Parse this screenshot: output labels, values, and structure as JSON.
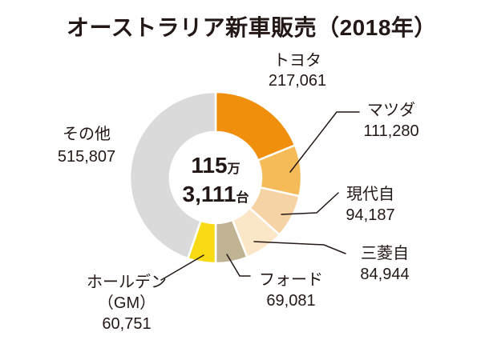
{
  "page": {
    "background_color": "#ffffff",
    "text_color": "#231815"
  },
  "chart_data": {
    "type": "pie",
    "donut": true,
    "title": "オーストラリア新車販売（2018年）",
    "start_angle_deg": 0,
    "direction": "clockwise",
    "total_value": 1153111,
    "center_label": {
      "line1_number": "115",
      "line1_unit": "万",
      "line2_number": "3,111",
      "line2_unit": "台"
    },
    "segments": [
      {
        "label": "トヨタ",
        "value": 217061,
        "display": "217,061",
        "color": "#F08F0B"
      },
      {
        "label": "マツダ",
        "value": 111280,
        "display": "111,280",
        "color": "#F6BB59"
      },
      {
        "label": "現代自",
        "value": 94187,
        "display": "94,187",
        "color": "#F6D3A4"
      },
      {
        "label": "三菱自",
        "value": 84944,
        "display": "84,944",
        "color": "#FBE6C8"
      },
      {
        "label": "フォード",
        "value": 69081,
        "display": "69,081",
        "color": "#C1B494"
      },
      {
        "label": "ホールデン（GM）",
        "label_line1": "ホールデン",
        "label_line2": "（GM）",
        "value": 60751,
        "display": "60,751",
        "color": "#F8DB13"
      },
      {
        "label": "その他",
        "value": 515807,
        "display": "515,807",
        "color": "#DADADA"
      }
    ],
    "leader_line_color": "#231815"
  }
}
